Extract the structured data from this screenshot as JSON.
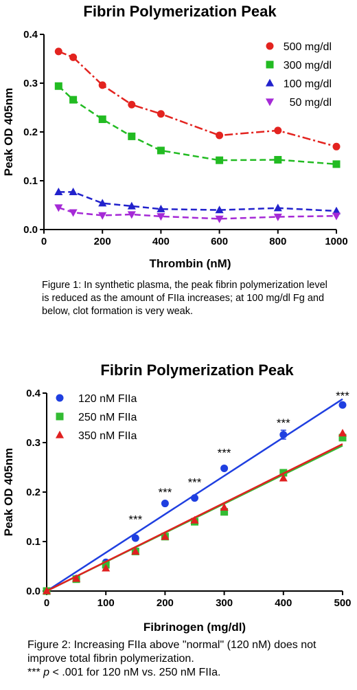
{
  "chart_data": [
    {
      "type": "line",
      "title": "Fibrin Polymerization Peak",
      "xlabel": "Thrombin (nM)",
      "ylabel": "Peak OD 405nm",
      "xlim": [
        0,
        1000
      ],
      "ylim": [
        0,
        0.4
      ],
      "xticks": [
        0,
        200,
        400,
        600,
        800,
        1000
      ],
      "yticks": [
        0.0,
        0.1,
        0.2,
        0.3,
        0.4
      ],
      "ytick_labels": [
        "0.0",
        "0.1",
        "0.2",
        "0.3",
        "0.4"
      ],
      "grid": false,
      "legend_position": "top-right",
      "x": [
        50,
        100,
        200,
        300,
        400,
        600,
        800,
        1000
      ],
      "series": [
        {
          "name": "500 mg/dl",
          "color": "#e3231f",
          "marker": "circle",
          "line": "dash-dot",
          "values": [
            0.365,
            0.353,
            0.296,
            0.256,
            0.237,
            0.193,
            0.203,
            0.17
          ]
        },
        {
          "name": "300 mg/dl",
          "color": "#22bb22",
          "marker": "square",
          "line": "dashed",
          "values": [
            0.294,
            0.266,
            0.226,
            0.191,
            0.162,
            0.142,
            0.143,
            0.134
          ]
        },
        {
          "name": "100 mg/dl",
          "color": "#2222cc",
          "marker": "triangle-up",
          "line": "dashed",
          "values": [
            0.077,
            0.077,
            0.054,
            0.048,
            0.042,
            0.04,
            0.044,
            0.038
          ]
        },
        {
          "name": "50 mg/dl",
          "color": "#a52ad6",
          "marker": "triangle-down",
          "line": "dashed",
          "values": [
            0.045,
            0.035,
            0.029,
            0.031,
            0.027,
            0.022,
            0.026,
            0.028
          ]
        }
      ]
    },
    {
      "type": "scatter",
      "title": "Fibrin Polymerization Peak",
      "xlabel": "Fibrinogen (mg/dl)",
      "ylabel": "Peak OD 405nm",
      "xlim": [
        0,
        500
      ],
      "ylim": [
        0,
        0.4
      ],
      "xticks": [
        0,
        100,
        200,
        300,
        400,
        500
      ],
      "yticks": [
        0.0,
        0.1,
        0.2,
        0.3,
        0.4
      ],
      "ytick_labels": [
        "0.0",
        "0.1",
        "0.2",
        "0.3",
        "0.4"
      ],
      "grid": false,
      "legend_position": "top-left",
      "x": [
        0,
        50,
        100,
        150,
        200,
        250,
        300,
        400,
        500
      ],
      "series": [
        {
          "name": "120 nM FIIa",
          "color": "#1f3fe0",
          "marker": "circle",
          "values": [
            0.0,
            0.025,
            0.058,
            0.107,
            0.177,
            0.188,
            0.248,
            0.316,
            0.376
          ],
          "fit": [
            0.0,
            0.388
          ],
          "error_y": [
            0,
            0,
            0,
            0,
            0,
            0,
            0,
            0.009,
            0
          ]
        },
        {
          "name": "250 nM FIIa",
          "color": "#33bb33",
          "marker": "square",
          "values": [
            0.0,
            0.024,
            0.053,
            0.08,
            0.11,
            0.14,
            0.16,
            0.239,
            0.31
          ],
          "fit": [
            0.0,
            0.294
          ]
        },
        {
          "name": "350 nM FIIa",
          "color": "#e02020",
          "marker": "triangle-up",
          "values": [
            0.0,
            0.025,
            0.046,
            0.08,
            0.11,
            0.143,
            0.169,
            0.228,
            0.319
          ],
          "fit": [
            0.0,
            0.297
          ]
        }
      ],
      "annotations": [
        {
          "x": 150,
          "y": 0.145,
          "text": "***"
        },
        {
          "x": 200,
          "y": 0.2,
          "text": "***"
        },
        {
          "x": 250,
          "y": 0.22,
          "text": "***"
        },
        {
          "x": 300,
          "y": 0.28,
          "text": "***"
        },
        {
          "x": 400,
          "y": 0.34,
          "text": "***"
        },
        {
          "x": 500,
          "y": 0.395,
          "text": "***"
        }
      ]
    }
  ],
  "captions": {
    "figure1": "Figure 1: In synthetic plasma, the peak fibrin polymerization level is reduced as the amount of FIIa increases; at 100 mg/dl Fg and below, clot formation is very weak.",
    "figure2_line1": "Figure 2: Increasing FIIa above \"normal\" (120 nM) does not improve total fibrin polymerization.",
    "figure2_line2_prefix": "*** ",
    "figure2_line2_p": "p",
    "figure2_line2_suffix": " < .001 for 120 nM vs. 250 nM FIIa."
  }
}
